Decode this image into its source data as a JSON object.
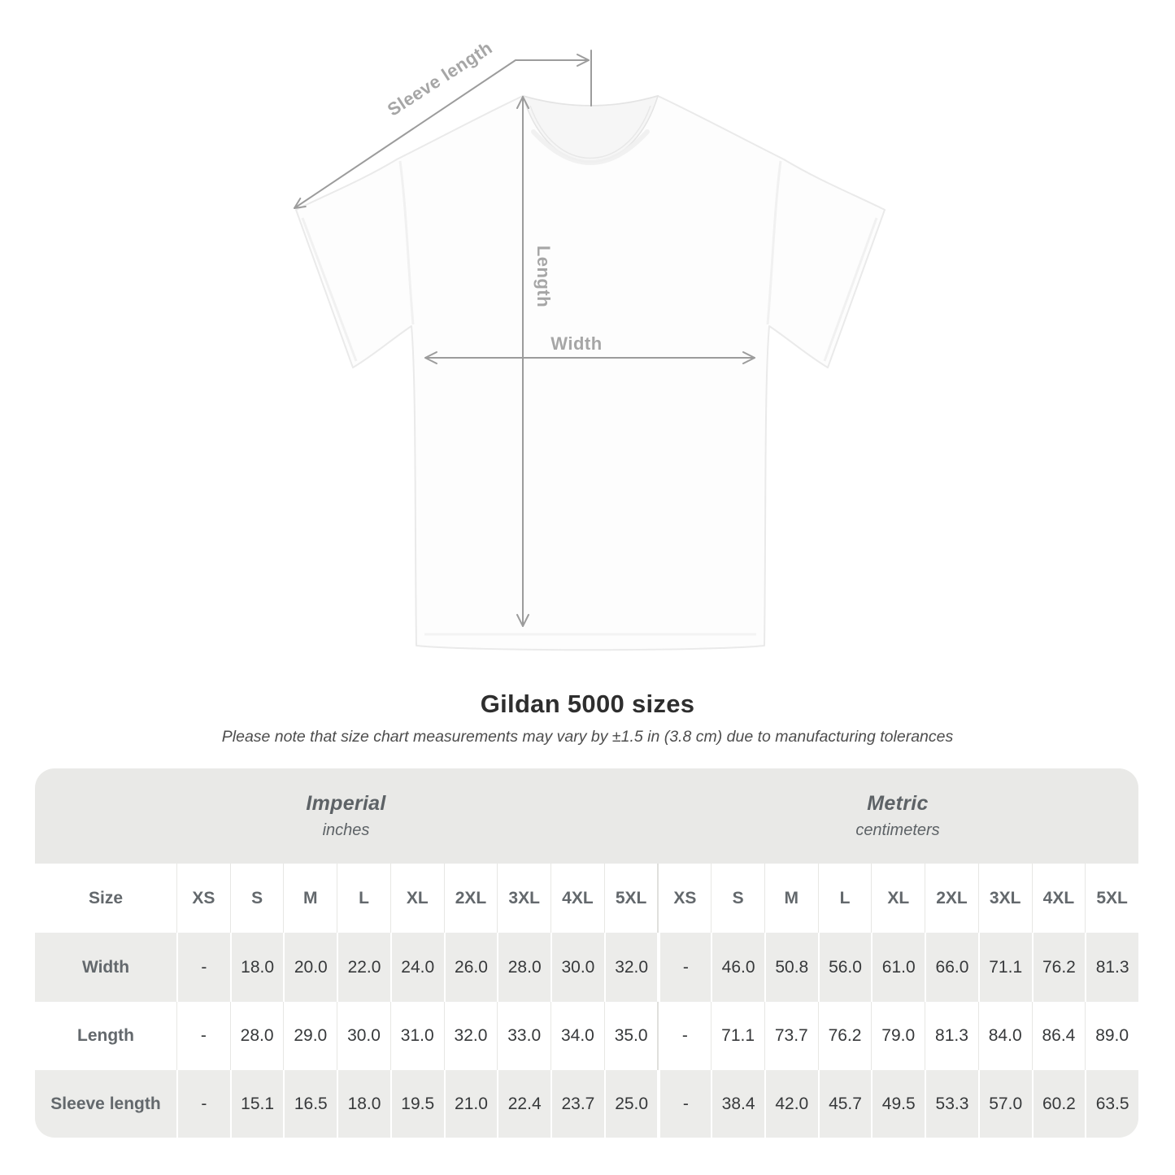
{
  "diagram": {
    "labels": {
      "sleeve_length": "Sleeve length",
      "length": "Length",
      "width": "Width"
    },
    "line_color": "#9c9c9c",
    "label_color": "#a6a6a6"
  },
  "heading": {
    "title": "Gildan 5000 sizes",
    "note": "Please note that size chart measurements may vary by ±1.5 in (3.8 cm) due to manufacturing tolerances"
  },
  "size_table": {
    "unit_groups": [
      {
        "name": "Imperial",
        "unit": "inches"
      },
      {
        "name": "Metric",
        "unit": "centimeters"
      }
    ],
    "size_column_header": "Size",
    "sizes": [
      "XS",
      "S",
      "M",
      "L",
      "XL",
      "2XL",
      "3XL",
      "4XL",
      "5XL"
    ],
    "rows": [
      {
        "label": "Width",
        "imperial": [
          "-",
          "18.0",
          "20.0",
          "22.0",
          "24.0",
          "26.0",
          "28.0",
          "30.0",
          "32.0"
        ],
        "metric": [
          "-",
          "46.0",
          "50.8",
          "56.0",
          "61.0",
          "66.0",
          "71.1",
          "76.2",
          "81.3"
        ]
      },
      {
        "label": "Length",
        "imperial": [
          "-",
          "28.0",
          "29.0",
          "30.0",
          "31.0",
          "32.0",
          "33.0",
          "34.0",
          "35.0"
        ],
        "metric": [
          "-",
          "71.1",
          "73.7",
          "76.2",
          "79.0",
          "81.3",
          "84.0",
          "86.4",
          "89.0"
        ]
      },
      {
        "label": "Sleeve length",
        "imperial": [
          "-",
          "15.1",
          "16.5",
          "18.0",
          "19.5",
          "21.0",
          "22.4",
          "23.7",
          "25.0"
        ],
        "metric": [
          "-",
          "38.4",
          "42.0",
          "45.7",
          "49.5",
          "53.3",
          "57.0",
          "60.2",
          "63.5"
        ]
      }
    ],
    "colors": {
      "header_bg": "#e9e9e7",
      "stripe_bg": "#ececea",
      "hairline": "#e7e7e4",
      "label_text": "#63686c",
      "value_text": "#37393b"
    }
  },
  "chart_data": {
    "type": "table",
    "title": "Gildan 5000 sizes",
    "note": "Please note that size chart measurements may vary by ±1.5 in (3.8 cm) due to manufacturing tolerances",
    "column_groups": [
      {
        "label": "Imperial",
        "unit": "inches",
        "sizes": [
          "XS",
          "S",
          "M",
          "L",
          "XL",
          "2XL",
          "3XL",
          "4XL",
          "5XL"
        ]
      },
      {
        "label": "Metric",
        "unit": "centimeters",
        "sizes": [
          "XS",
          "S",
          "M",
          "L",
          "XL",
          "2XL",
          "3XL",
          "4XL",
          "5XL"
        ]
      }
    ],
    "rows": [
      {
        "measurement": "Width",
        "imperial_in": [
          null,
          18.0,
          20.0,
          22.0,
          24.0,
          26.0,
          28.0,
          30.0,
          32.0
        ],
        "metric_cm": [
          null,
          46.0,
          50.8,
          56.0,
          61.0,
          66.0,
          71.1,
          76.2,
          81.3
        ]
      },
      {
        "measurement": "Length",
        "imperial_in": [
          null,
          28.0,
          29.0,
          30.0,
          31.0,
          32.0,
          33.0,
          34.0,
          35.0
        ],
        "metric_cm": [
          null,
          71.1,
          73.7,
          76.2,
          79.0,
          81.3,
          84.0,
          86.4,
          89.0
        ]
      },
      {
        "measurement": "Sleeve length",
        "imperial_in": [
          null,
          15.1,
          16.5,
          18.0,
          19.5,
          21.0,
          22.4,
          23.7,
          25.0
        ],
        "metric_cm": [
          null,
          38.4,
          42.0,
          45.7,
          49.5,
          53.3,
          57.0,
          60.2,
          63.5
        ]
      }
    ]
  }
}
